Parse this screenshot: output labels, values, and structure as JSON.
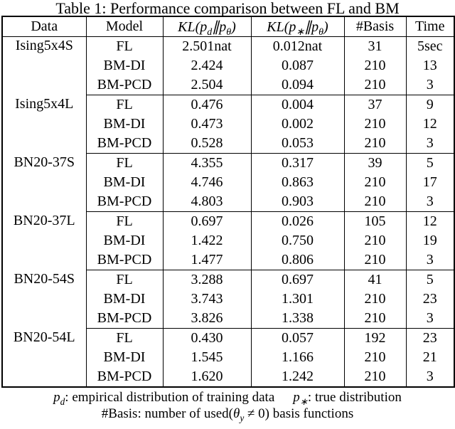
{
  "title": "Table 1: Performance comparison between FL and BM",
  "table": {
    "headers": {
      "data": "Data",
      "model": "Model",
      "kl1": {
        "main": "KL(p",
        "sub1": "d",
        "mid": "∥p",
        "sub2": "θ",
        "end": ")"
      },
      "kl2": {
        "main": "KL(p",
        "sub1": "∗",
        "mid": "∥p",
        "sub2": "θ",
        "end": ")"
      },
      "basis": "#Basis",
      "time": "Time"
    },
    "groups": [
      {
        "data": "Ising5x4S",
        "rows": [
          {
            "model": "FL",
            "kl_d": "2.501nat",
            "kl_star": "0.012nat",
            "basis": "31",
            "time": "5sec"
          },
          {
            "model": "BM-DI",
            "kl_d": "2.424",
            "kl_star": "0.087",
            "basis": "210",
            "time": "13"
          },
          {
            "model": "BM-PCD",
            "kl_d": "2.504",
            "kl_star": "0.094",
            "basis": "210",
            "time": "3"
          }
        ]
      },
      {
        "data": "Ising5x4L",
        "rows": [
          {
            "model": "FL",
            "kl_d": "0.476",
            "kl_star": "0.004",
            "basis": "37",
            "time": "9"
          },
          {
            "model": "BM-DI",
            "kl_d": "0.473",
            "kl_star": "0.002",
            "basis": "210",
            "time": "12"
          },
          {
            "model": "BM-PCD",
            "kl_d": "0.528",
            "kl_star": "0.053",
            "basis": "210",
            "time": "3"
          }
        ]
      },
      {
        "data": "BN20-37S",
        "rows": [
          {
            "model": "FL",
            "kl_d": "4.355",
            "kl_star": "0.317",
            "basis": "39",
            "time": "5"
          },
          {
            "model": "BM-DI",
            "kl_d": "4.746",
            "kl_star": "0.863",
            "basis": "210",
            "time": "17"
          },
          {
            "model": "BM-PCD",
            "kl_d": "4.803",
            "kl_star": "0.903",
            "basis": "210",
            "time": "3"
          }
        ]
      },
      {
        "data": "BN20-37L",
        "rows": [
          {
            "model": "FL",
            "kl_d": "0.697",
            "kl_star": "0.026",
            "basis": "105",
            "time": "12"
          },
          {
            "model": "BM-DI",
            "kl_d": "1.422",
            "kl_star": "0.750",
            "basis": "210",
            "time": "19"
          },
          {
            "model": "BM-PCD",
            "kl_d": "1.477",
            "kl_star": "0.806",
            "basis": "210",
            "time": "3"
          }
        ]
      },
      {
        "data": "BN20-54S",
        "rows": [
          {
            "model": "FL",
            "kl_d": "3.288",
            "kl_star": "0.697",
            "basis": "41",
            "time": "5"
          },
          {
            "model": "BM-DI",
            "kl_d": "3.743",
            "kl_star": "1.301",
            "basis": "210",
            "time": "23"
          },
          {
            "model": "BM-PCD",
            "kl_d": "3.826",
            "kl_star": "1.338",
            "basis": "210",
            "time": "3"
          }
        ]
      },
      {
        "data": "BN20-54L",
        "rows": [
          {
            "model": "FL",
            "kl_d": "0.430",
            "kl_star": "0.057",
            "basis": "192",
            "time": "23"
          },
          {
            "model": "BM-DI",
            "kl_d": "1.545",
            "kl_star": "1.166",
            "basis": "210",
            "time": "21"
          },
          {
            "model": "BM-PCD",
            "kl_d": "1.620",
            "kl_star": "1.242",
            "basis": "210",
            "time": "3"
          }
        ]
      }
    ]
  },
  "footnotes": {
    "f1": {
      "sym1": "p",
      "sym1sub": "d",
      "text1": ": empirical distribution of training data",
      "sym2": "p",
      "sym2sub": "∗",
      "text2": ": true distribution"
    },
    "f2": {
      "pre": "#Basis: number of used(",
      "sym": "θ",
      "sub": "y",
      "post": " ≠ 0) basis functions"
    }
  }
}
